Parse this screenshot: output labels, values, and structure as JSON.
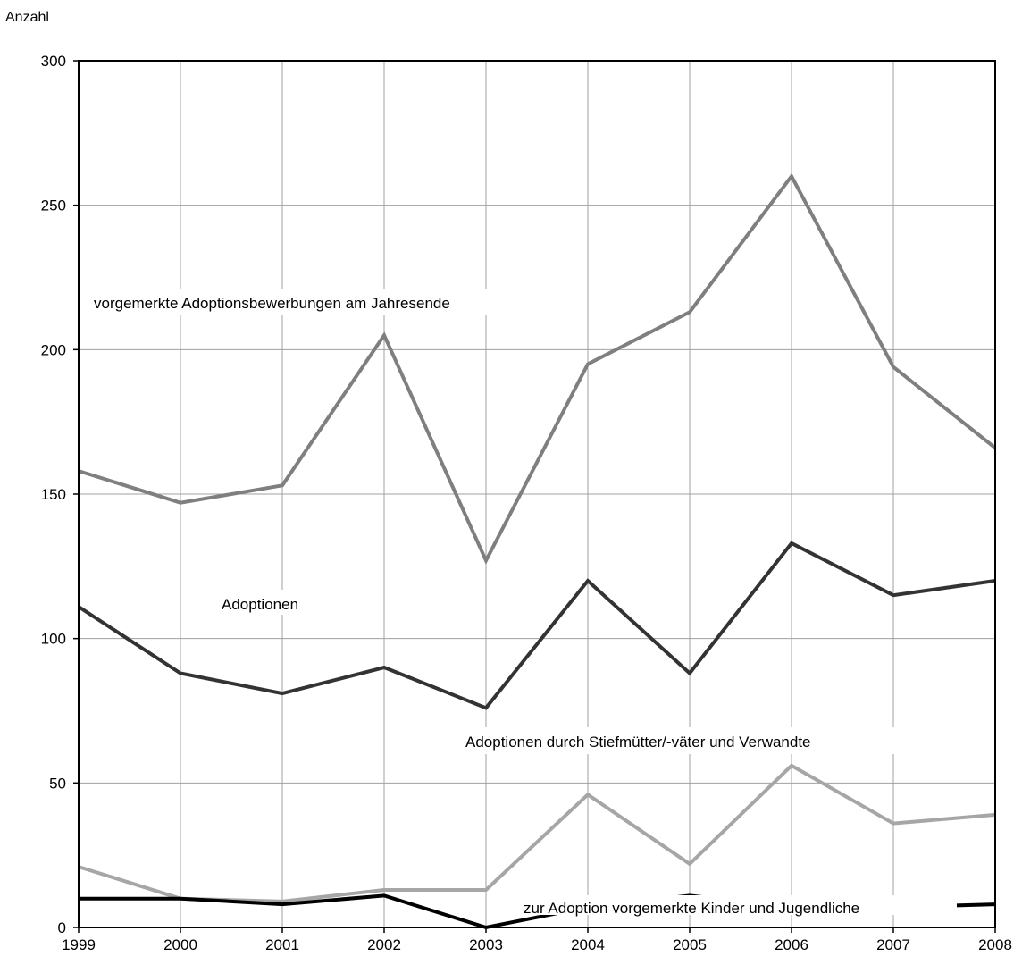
{
  "chart_data": {
    "type": "line",
    "ylabel": "Anzahl",
    "xlabel": "",
    "title": "",
    "x": [
      "1999",
      "2000",
      "2001",
      "2002",
      "2003",
      "2004",
      "2005",
      "2006",
      "2007",
      "2008"
    ],
    "ylim": [
      0,
      300
    ],
    "yticks": [
      0,
      50,
      100,
      150,
      200,
      250,
      300
    ],
    "grid": true,
    "legend": "inline labels",
    "series": [
      {
        "name": "vorgemerkte Adoptionsbewerbungen am Jahresende",
        "color": "#7f7f7f",
        "values": [
          158,
          147,
          153,
          205,
          127,
          195,
          213,
          260,
          194,
          166
        ]
      },
      {
        "name": "Adoptionen",
        "color": "#333333",
        "values": [
          111,
          88,
          81,
          90,
          76,
          120,
          88,
          133,
          115,
          120
        ]
      },
      {
        "name": "Adoptionen durch Stiefmütter/-väter und Verwandte",
        "color": "#a6a6a6",
        "values": [
          21,
          10,
          9,
          13,
          13,
          46,
          22,
          56,
          36,
          39
        ]
      },
      {
        "name": "zur Adoption vorgemerkte Kinder und Jugendliche",
        "color": "#000000",
        "values": [
          10,
          10,
          8,
          11,
          0,
          7,
          11,
          7,
          7,
          8
        ]
      }
    ]
  }
}
